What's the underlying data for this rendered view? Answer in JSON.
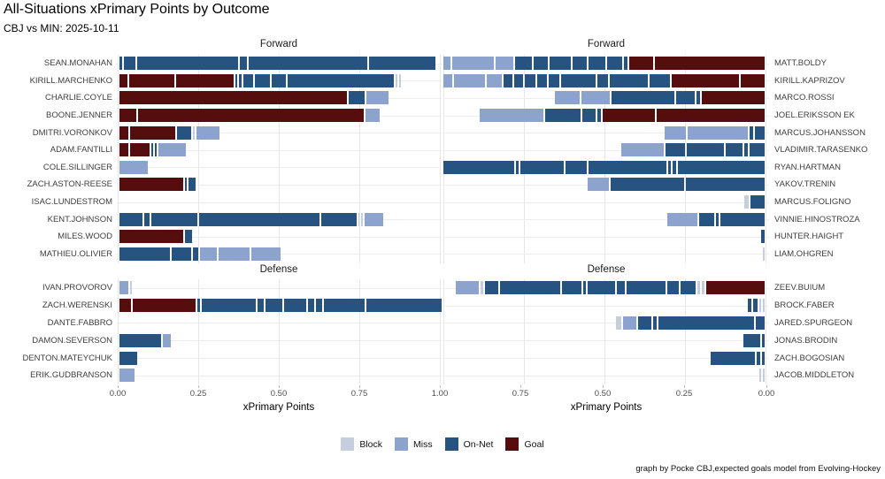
{
  "title": "All-Situations xPrimary Points by Outcome",
  "subtitle": "CBJ vs MIN: 2025-10-11",
  "caption": "graph by Pocke CBJ,expected goals model from Evolving-Hockey",
  "facets": {
    "forward_label": "Forward",
    "defense_label": "Defense"
  },
  "axis": {
    "label": "xPrimary Points",
    "left_ticks": [
      "0.00",
      "0.25",
      "0.50",
      "0.75",
      "1.00"
    ],
    "right_ticks": [
      "0.75",
      "0.50",
      "0.25",
      "0.00"
    ]
  },
  "legend": [
    {
      "label": "Block",
      "color": "#c5cedc"
    },
    {
      "label": "Miss",
      "color": "#8ca4cd"
    },
    {
      "label": "On-Net",
      "color": "#275380"
    },
    {
      "label": "Goal",
      "color": "#560d0d"
    }
  ],
  "chart_data": {
    "type": "bar",
    "orientation": "horizontal-stacked",
    "unit": "xPrimary Points",
    "xlim": [
      0,
      1.05
    ],
    "grid": true,
    "outcome_colors": {
      "Block": "#c5cedc",
      "Miss": "#8ca4cd",
      "On-Net": "#275380",
      "Goal": "#560d0d"
    },
    "panels": [
      {
        "team": "CBJ",
        "section": "Forward",
        "players": [
          {
            "name": "SEAN.MONAHAN",
            "segments": [
              [
                "On-Net",
                0.008
              ],
              [
                "On-Net",
                0.036
              ],
              [
                "On-Net",
                0.313
              ],
              [
                "On-Net",
                0.022
              ],
              [
                "On-Net",
                0.368
              ],
              [
                "On-Net",
                0.206
              ]
            ]
          },
          {
            "name": "KIRILL.MARCHENKO",
            "segments": [
              [
                "Goal",
                0.025
              ],
              [
                "Goal",
                0.14
              ],
              [
                "Goal",
                0.179
              ],
              [
                "On-Net",
                0.006
              ],
              [
                "On-Net",
                0.008
              ],
              [
                "On-Net",
                0.03
              ],
              [
                "On-Net",
                0.045
              ],
              [
                "On-Net",
                0.045
              ],
              [
                "On-Net",
                0.33
              ],
              [
                "Block",
                0.006
              ],
              [
                "Block",
                0.006
              ]
            ]
          },
          {
            "name": "CHARLIE.COYLE",
            "segments": [
              [
                "Goal",
                0.706
              ],
              [
                "On-Net",
                0.049
              ],
              [
                "Miss",
                0.069
              ]
            ]
          },
          {
            "name": "BOONE.JENNER",
            "segments": [
              [
                "Goal",
                0.052
              ],
              [
                "Goal",
                0.7
              ],
              [
                "Miss",
                0.044
              ]
            ]
          },
          {
            "name": "DMITRI.VORONKOV",
            "segments": [
              [
                "Goal",
                0.027
              ],
              [
                "Goal",
                0.14
              ],
              [
                "On-Net",
                0.044
              ],
              [
                "Block",
                0.006
              ],
              [
                "Miss",
                0.071
              ]
            ]
          },
          {
            "name": "ADAM.FANTILLI",
            "segments": [
              [
                "Goal",
                0.027
              ],
              [
                "Goal",
                0.06
              ],
              [
                "On-Net",
                0.006
              ],
              [
                "On-Net",
                0.006
              ],
              [
                "Miss",
                0.085
              ]
            ]
          },
          {
            "name": "COLE.SILLINGER",
            "segments": [
              [
                "Miss",
                0.088
              ]
            ]
          },
          {
            "name": "ZACH.ASTON-REESE",
            "segments": [
              [
                "Goal",
                0.198
              ],
              [
                "On-Net",
                0.006
              ],
              [
                "On-Net",
                0.022
              ]
            ]
          },
          {
            "name": "ISAC.LUNDESTROM",
            "segments": []
          },
          {
            "name": "KENT.JOHNSON",
            "segments": [
              [
                "On-Net",
                0.071
              ],
              [
                "On-Net",
                0.016
              ],
              [
                "On-Net",
                0.143
              ],
              [
                "On-Net",
                0.374
              ],
              [
                "On-Net",
                0.11
              ],
              [
                "Block",
                0.004
              ],
              [
                "Block",
                0.004
              ],
              [
                "Miss",
                0.058
              ]
            ]
          },
          {
            "name": "MILES.WOOD",
            "segments": [
              [
                "Goal",
                0.198
              ],
              [
                "On-Net",
                0.022
              ]
            ]
          },
          {
            "name": "MATHIEU.OLIVIER",
            "segments": [
              [
                "On-Net",
                0.157
              ],
              [
                "On-Net",
                0.06
              ],
              [
                "On-Net",
                0.016
              ],
              [
                "Miss",
                0.052
              ],
              [
                "Miss",
                0.096
              ],
              [
                "Miss",
                0.091
              ]
            ]
          }
        ]
      },
      {
        "team": "MIN",
        "section": "Forward",
        "players": [
          {
            "name": "MATT.BOLDY",
            "segments": [
              [
                "Goal",
                0.342
              ],
              [
                "Goal",
                0.072
              ],
              [
                "On-Net",
                0.013
              ],
              [
                "On-Net",
                0.046
              ],
              [
                "On-Net",
                0.051
              ],
              [
                "On-Net",
                0.046
              ],
              [
                "On-Net",
                0.066
              ],
              [
                "On-Net",
                0.044
              ],
              [
                "On-Net",
                0.05
              ],
              [
                "Miss",
                0.056
              ],
              [
                "Miss",
                0.128
              ],
              [
                "Miss",
                0.039
              ]
            ]
          },
          {
            "name": "KIRILL.KAPRIZOV",
            "segments": [
              [
                "Goal",
                0.075
              ],
              [
                "Goal",
                0.208
              ],
              [
                "On-Net",
                0.064
              ],
              [
                "On-Net",
                0.118
              ],
              [
                "On-Net",
                0.032
              ],
              [
                "On-Net",
                0.108
              ],
              [
                "On-Net",
                0.033
              ],
              [
                "On-Net",
                0.031
              ],
              [
                "On-Net",
                0.031
              ],
              [
                "On-Net",
                0.028
              ],
              [
                "On-Net",
                0.027
              ],
              [
                "Miss",
                0.048
              ],
              [
                "Miss",
                0.096
              ],
              [
                "Miss",
                0.07
              ]
            ]
          },
          {
            "name": "MARCO.ROSSI",
            "segments": [
              [
                "Goal",
                0.194
              ],
              [
                "On-Net",
                0.012
              ],
              [
                "On-Net",
                0.059
              ],
              [
                "On-Net",
                0.194
              ],
              [
                "Miss",
                0.089
              ],
              [
                "Miss",
                0.077
              ]
            ]
          },
          {
            "name": "JOEL.ERIKSSON EK",
            "segments": [
              [
                "Goal",
                0.335
              ],
              [
                "Goal",
                0.163
              ],
              [
                "On-Net",
                0.009
              ],
              [
                "On-Net",
                0.043
              ],
              [
                "On-Net",
                0.109
              ],
              [
                "Miss",
                0.197
              ]
            ]
          },
          {
            "name": "MARCUS.JOHANSSON",
            "segments": [
              [
                "On-Net",
                0.03
              ],
              [
                "On-Net",
                0.012
              ],
              [
                "Miss",
                0.185
              ],
              [
                "Miss",
                0.068
              ]
            ]
          },
          {
            "name": "VLADIMIR.TARASENKO",
            "segments": [
              [
                "On-Net",
                0.048
              ],
              [
                "On-Net",
                0.009
              ],
              [
                "On-Net",
                0.054
              ],
              [
                "On-Net",
                0.114
              ],
              [
                "On-Net",
                0.06
              ],
              [
                "Miss",
                0.132
              ]
            ]
          },
          {
            "name": "RYAN.HARTMAN",
            "segments": [
              [
                "On-Net",
                0.27
              ],
              [
                "On-Net",
                0.011
              ],
              [
                "On-Net",
                0.008
              ],
              [
                "On-Net",
                0.242
              ],
              [
                "On-Net",
                0.064
              ],
              [
                "On-Net",
                0.136
              ],
              [
                "On-Net",
                0.008
              ],
              [
                "On-Net",
                0.255
              ]
            ]
          },
          {
            "name": "YAKOV.TRENIN",
            "segments": [
              [
                "On-Net",
                0.245
              ],
              [
                "On-Net",
                0.228
              ],
              [
                "Miss",
                0.065
              ]
            ]
          },
          {
            "name": "MARCUS.FOLIGNO",
            "segments": [
              [
                "On-Net",
                0.045
              ],
              [
                "Block",
                0.012
              ]
            ]
          },
          {
            "name": "VINNIE.HINOSTROZA",
            "segments": [
              [
                "On-Net",
                0.137
              ],
              [
                "On-Net",
                0.009
              ],
              [
                "On-Net",
                0.047
              ],
              [
                "Miss",
                0.093
              ]
            ]
          },
          {
            "name": "HUNTER.HAIGHT",
            "segments": [
              [
                "On-Net",
                0.01
              ]
            ]
          },
          {
            "name": "LIAM.OHGREN",
            "segments": [
              [
                "Block",
                0.006
              ]
            ]
          }
        ]
      },
      {
        "team": "CBJ",
        "section": "Defense",
        "players": [
          {
            "name": "IVAN.PROVOROV",
            "segments": [
              [
                "Miss",
                0.027
              ],
              [
                "Block",
                0.006
              ]
            ]
          },
          {
            "name": "ZACH.WERENSKI",
            "segments": [
              [
                "Goal",
                0.035
              ],
              [
                "Goal",
                0.197
              ],
              [
                "On-Net",
                0.006
              ],
              [
                "On-Net",
                0.168
              ],
              [
                "On-Net",
                0.021
              ],
              [
                "On-Net",
                0.05
              ],
              [
                "On-Net",
                0.071
              ],
              [
                "On-Net",
                0.017
              ],
              [
                "On-Net",
                0.02
              ],
              [
                "On-Net",
                0.126
              ],
              [
                "On-Net",
                0.233
              ]
            ]
          },
          {
            "name": "DANTE.FABBRO",
            "segments": []
          },
          {
            "name": "DAMON.SEVERSON",
            "segments": [
              [
                "On-Net",
                0.129
              ],
              [
                "Miss",
                0.025
              ]
            ]
          },
          {
            "name": "DENTON.MATEYCHUK",
            "segments": [
              [
                "On-Net",
                0.055
              ]
            ]
          },
          {
            "name": "ERIK.GUDBRANSON",
            "segments": [
              [
                "Miss",
                0.048
              ]
            ]
          }
        ]
      },
      {
        "team": "MIN",
        "section": "Defense",
        "players": [
          {
            "name": "ZEEV.BUIUM",
            "segments": [
              [
                "Goal",
                0.182
              ],
              [
                "Block",
                0.008
              ],
              [
                "Block",
                0.008
              ],
              [
                "On-Net",
                0.046
              ],
              [
                "On-Net",
                0.036
              ],
              [
                "On-Net",
                0.121
              ],
              [
                "On-Net",
                0.025
              ],
              [
                "On-Net",
                0.085
              ],
              [
                "On-Net",
                0.009
              ],
              [
                "On-Net",
                0.06
              ],
              [
                "On-Net",
                0.188
              ],
              [
                "On-Net",
                0.039
              ],
              [
                "Block",
                0.008
              ],
              [
                "Miss",
                0.073
              ]
            ]
          },
          {
            "name": "BROCK.FABER",
            "segments": [
              [
                "Block",
                0.005
              ],
              [
                "Block",
                0.005
              ],
              [
                "On-Net",
                0.016
              ],
              [
                "On-Net",
                0.01
              ]
            ]
          },
          {
            "name": "JARED.SPURGEON",
            "segments": [
              [
                "On-Net",
                0.028
              ],
              [
                "On-Net",
                0.297
              ],
              [
                "On-Net",
                0.009
              ],
              [
                "On-Net",
                0.043
              ],
              [
                "Miss",
                0.04
              ],
              [
                "Block",
                0.016
              ]
            ]
          },
          {
            "name": "JONAS.BRODIN",
            "segments": [
              [
                "On-Net",
                0.008
              ],
              [
                "On-Net",
                0.052
              ]
            ]
          },
          {
            "name": "ZACH.BOGOSIAN",
            "segments": [
              [
                "On-Net",
                0.009
              ],
              [
                "On-Net",
                0.009
              ],
              [
                "On-Net",
                0.138
              ]
            ]
          },
          {
            "name": "JACOB.MIDDLETON",
            "segments": [
              [
                "Block",
                0.005
              ],
              [
                "Block",
                0.005
              ]
            ]
          }
        ]
      }
    ]
  }
}
